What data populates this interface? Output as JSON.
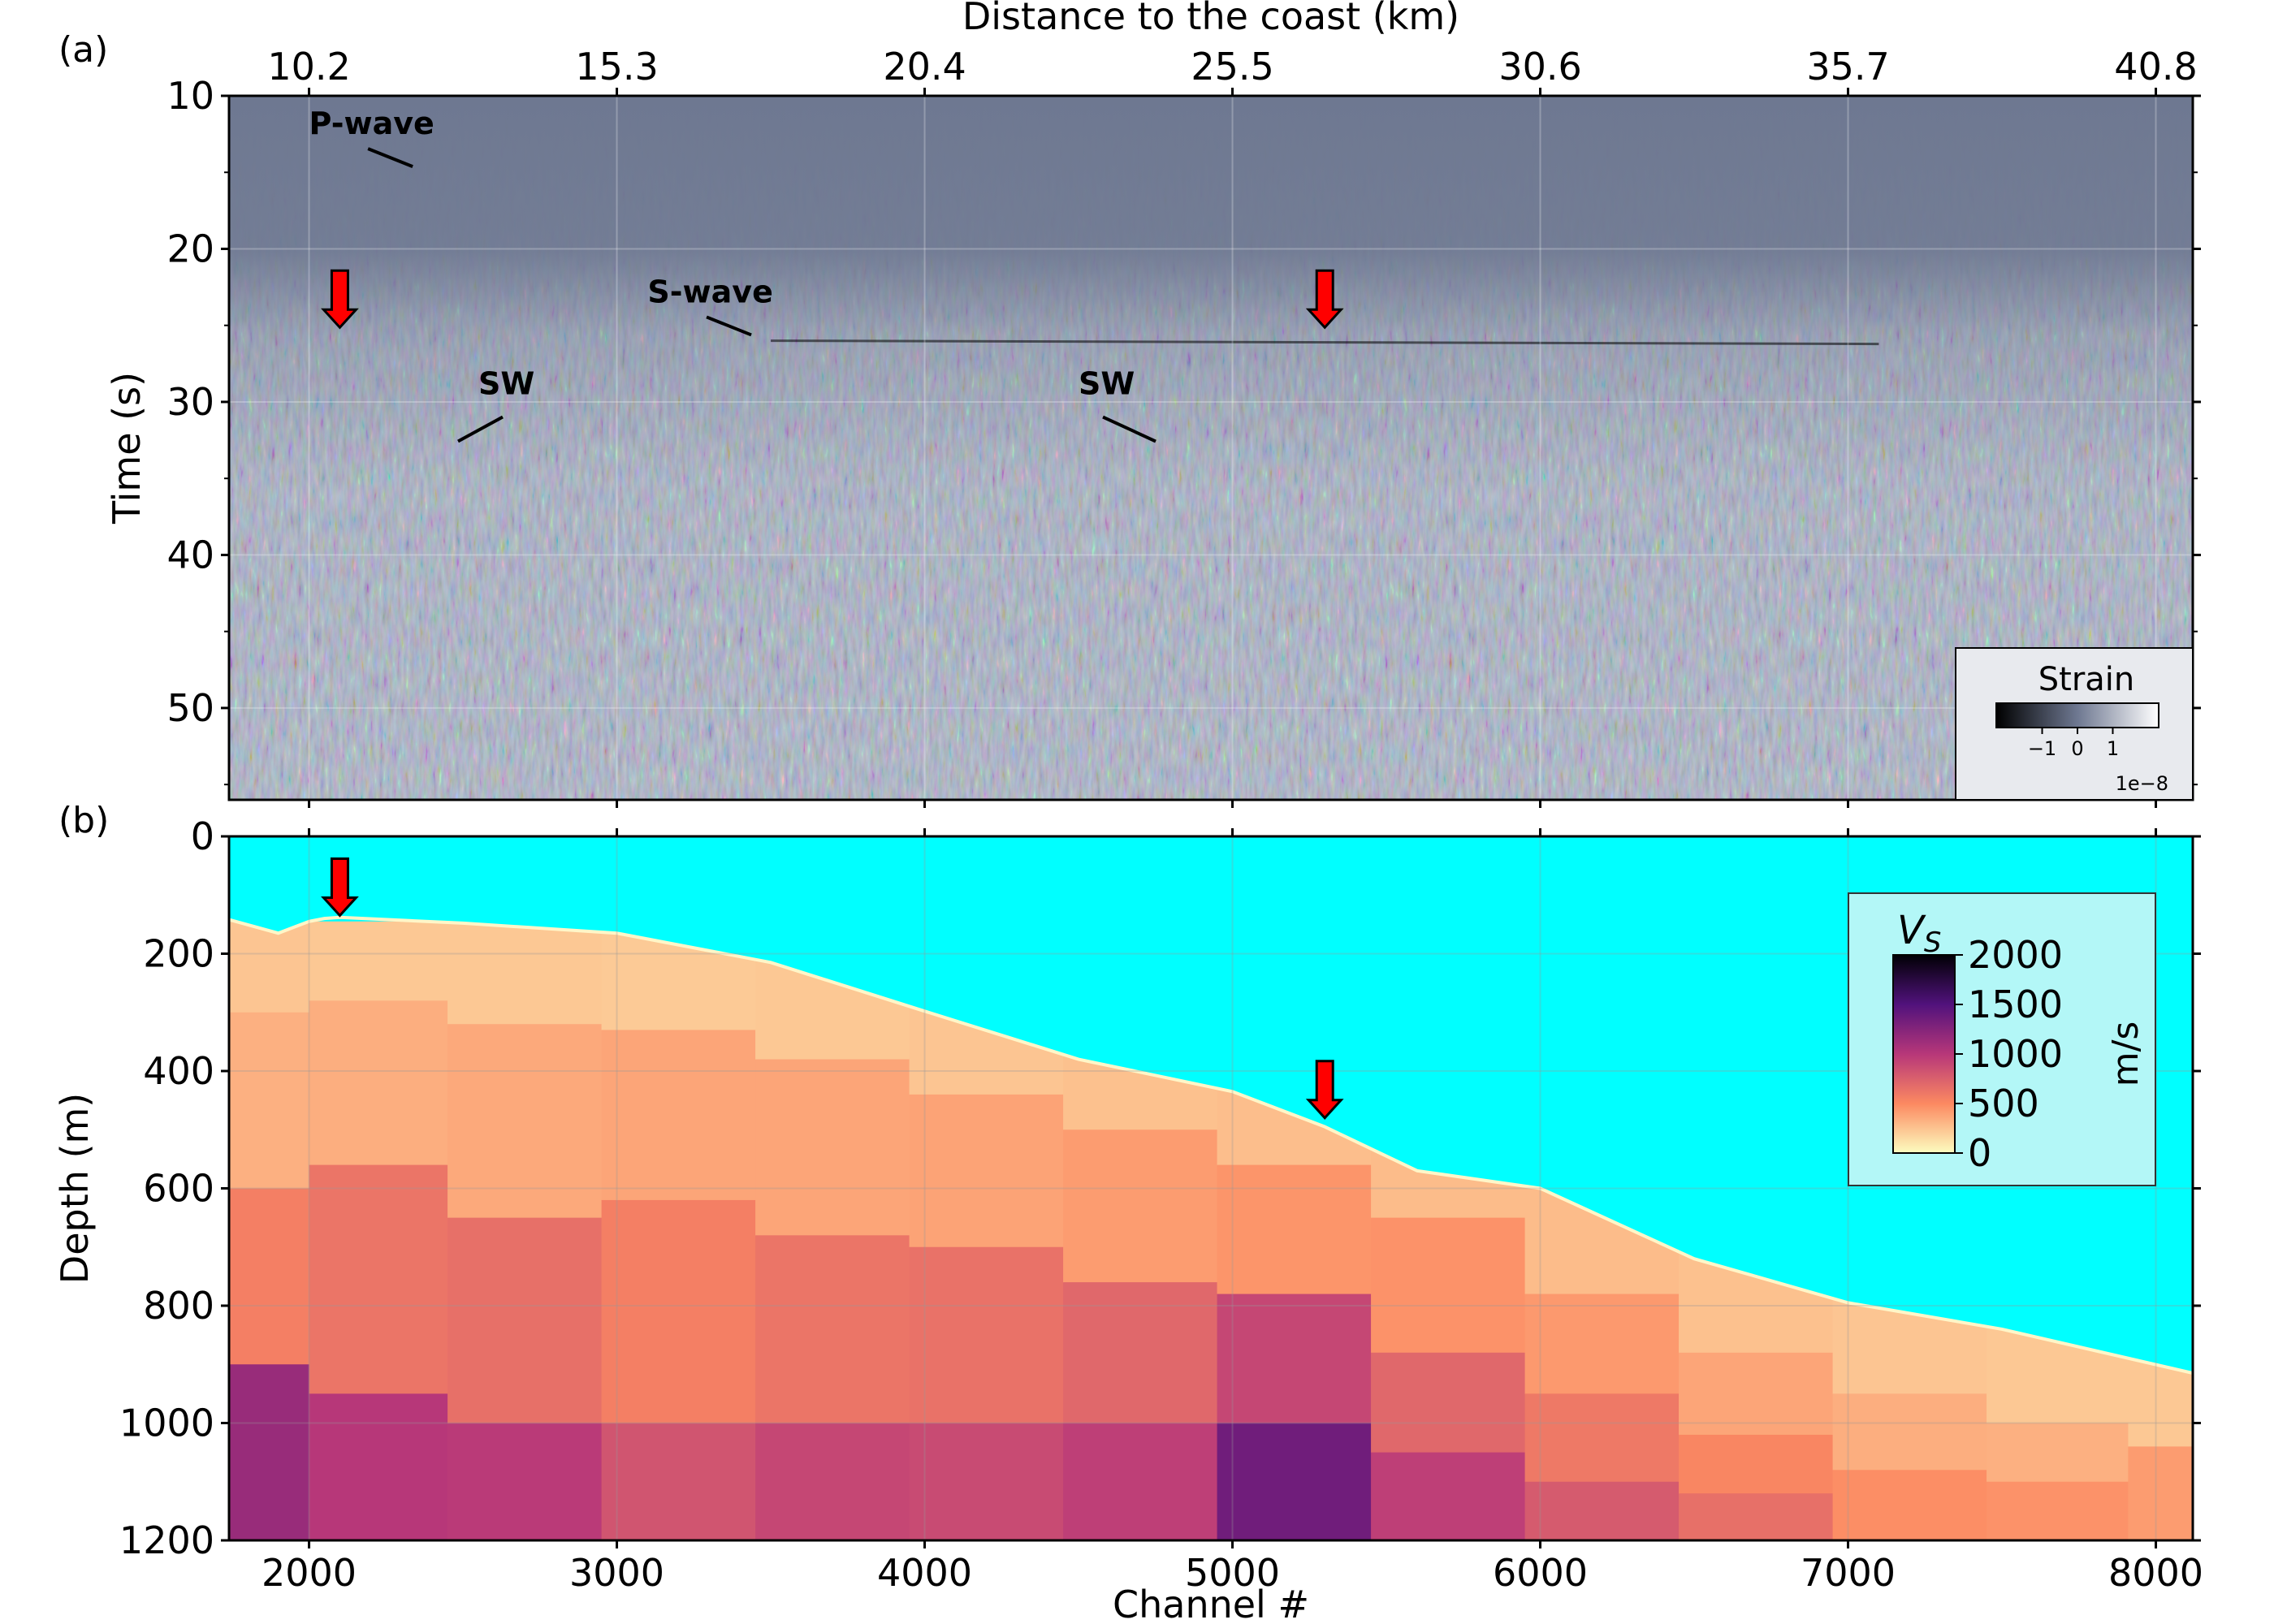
{
  "figure": {
    "panel_a_label": "(a)",
    "panel_b_label": "(b)"
  },
  "chart_data": [
    {
      "type": "heatmap",
      "panel": "(a)",
      "xlabel_top": "Distance to the coast (km)",
      "x_ticks_top": [
        "10.2",
        "15.3",
        "20.4",
        "25.5",
        "30.6",
        "35.7",
        "40.8"
      ],
      "x_ticks_channel": [
        2000,
        3000,
        4000,
        5000,
        6000,
        7000,
        8000
      ],
      "xlim_channel": [
        1740,
        8120
      ],
      "ylabel": "Time (s)",
      "ylim": [
        10,
        56
      ],
      "y_ticks": [
        10,
        20,
        30,
        40,
        50
      ],
      "colorbar": {
        "label": "Strain",
        "ticks": [
          "−1",
          "0",
          "1"
        ],
        "multiplier": "1e−8",
        "colors": [
          "#000000",
          "#6e7891",
          "#ffffff"
        ],
        "placement": "lower-right"
      },
      "annotations": [
        {
          "text": "P-wave",
          "channel": 2000,
          "time": 12.5
        },
        {
          "text": "S-wave",
          "channel": 3100,
          "time": 23.5
        },
        {
          "text": "SW",
          "channel": 2550,
          "time": 29.5
        },
        {
          "text": "SW",
          "channel": 4500,
          "time": 29.5
        }
      ],
      "arrows": [
        {
          "channel": 2100,
          "time": 24.5,
          "color": "#ff0000"
        },
        {
          "channel": 5300,
          "time": 24.5,
          "color": "#ff0000"
        }
      ],
      "features": {
        "direct_arrival_time_s": 26,
        "background_color": "#6e7891"
      }
    },
    {
      "type": "heatmap",
      "panel": "(b)",
      "xlabel": "Channel #",
      "x_ticks": [
        2000,
        3000,
        4000,
        5000,
        6000,
        7000,
        8000
      ],
      "xlim": [
        1740,
        8120
      ],
      "ylabel": "Depth (m)",
      "ylim": [
        0,
        1200
      ],
      "y_ticks": [
        0,
        200,
        400,
        600,
        800,
        1000,
        1200
      ],
      "colorbar": {
        "title": "V",
        "title_sub": "S",
        "unit": "m/s",
        "ticks": [
          0,
          500,
          1000,
          1500,
          2000
        ],
        "colors": [
          "#fcfdbf",
          "#fc8961",
          "#b73779",
          "#51127c",
          "#000004"
        ],
        "placement": "upper-right"
      },
      "water_color": "#00ffff",
      "seafloor": [
        {
          "channel": 1740,
          "depth": 142
        },
        {
          "channel": 1900,
          "depth": 165
        },
        {
          "channel": 2000,
          "depth": 145
        },
        {
          "channel": 2050,
          "depth": 140
        },
        {
          "channel": 2100,
          "depth": 138
        },
        {
          "channel": 2500,
          "depth": 148
        },
        {
          "channel": 3000,
          "depth": 165
        },
        {
          "channel": 3500,
          "depth": 215
        },
        {
          "channel": 4000,
          "depth": 298
        },
        {
          "channel": 4500,
          "depth": 380
        },
        {
          "channel": 5000,
          "depth": 435
        },
        {
          "channel": 5300,
          "depth": 495
        },
        {
          "channel": 5600,
          "depth": 570
        },
        {
          "channel": 6000,
          "depth": 600
        },
        {
          "channel": 6500,
          "depth": 720
        },
        {
          "channel": 7000,
          "depth": 795
        },
        {
          "channel": 7500,
          "depth": 840
        },
        {
          "channel": 8120,
          "depth": 915
        }
      ],
      "velocity_columns": [
        {
          "channel": 1800,
          "layers": [
            {
              "depth": 300,
              "vs": 240
            },
            {
              "depth": 600,
              "vs": 330
            },
            {
              "depth": 900,
              "vs": 560
            },
            {
              "depth": 1200,
              "vs": 1150
            }
          ]
        },
        {
          "channel": 2200,
          "layers": [
            {
              "depth": 280,
              "vs": 230
            },
            {
              "depth": 560,
              "vs": 340
            },
            {
              "depth": 950,
              "vs": 620
            },
            {
              "depth": 1200,
              "vs": 1000
            }
          ]
        },
        {
          "channel": 2700,
          "layers": [
            {
              "depth": 320,
              "vs": 230
            },
            {
              "depth": 650,
              "vs": 360
            },
            {
              "depth": 1000,
              "vs": 650
            },
            {
              "depth": 1200,
              "vs": 980
            }
          ]
        },
        {
          "channel": 3200,
          "layers": [
            {
              "depth": 330,
              "vs": 220
            },
            {
              "depth": 620,
              "vs": 380
            },
            {
              "depth": 1000,
              "vs": 560
            },
            {
              "depth": 1200,
              "vs": 820
            }
          ]
        },
        {
          "channel": 3700,
          "layers": [
            {
              "depth": 380,
              "vs": 230
            },
            {
              "depth": 680,
              "vs": 380
            },
            {
              "depth": 1000,
              "vs": 620
            },
            {
              "depth": 1200,
              "vs": 900
            }
          ]
        },
        {
          "channel": 4200,
          "layers": [
            {
              "depth": 440,
              "vs": 240
            },
            {
              "depth": 700,
              "vs": 390
            },
            {
              "depth": 1000,
              "vs": 640
            },
            {
              "depth": 1200,
              "vs": 880
            }
          ]
        },
        {
          "channel": 4700,
          "layers": [
            {
              "depth": 500,
              "vs": 260
            },
            {
              "depth": 760,
              "vs": 420
            },
            {
              "depth": 1000,
              "vs": 700
            },
            {
              "depth": 1200,
              "vs": 950
            }
          ]
        },
        {
          "channel": 5200,
          "layers": [
            {
              "depth": 560,
              "vs": 270
            },
            {
              "depth": 780,
              "vs": 450
            },
            {
              "depth": 1000,
              "vs": 900
            },
            {
              "depth": 1200,
              "vs": 1350
            }
          ]
        },
        {
          "channel": 5700,
          "layers": [
            {
              "depth": 650,
              "vs": 280
            },
            {
              "depth": 880,
              "vs": 460
            },
            {
              "depth": 1050,
              "vs": 700
            },
            {
              "depth": 1200,
              "vs": 950
            }
          ]
        },
        {
          "channel": 6200,
          "layers": [
            {
              "depth": 780,
              "vs": 280
            },
            {
              "depth": 950,
              "vs": 430
            },
            {
              "depth": 1100,
              "vs": 600
            },
            {
              "depth": 1200,
              "vs": 780
            }
          ]
        },
        {
          "channel": 6700,
          "layers": [
            {
              "depth": 880,
              "vs": 260
            },
            {
              "depth": 1020,
              "vs": 380
            },
            {
              "depth": 1120,
              "vs": 520
            },
            {
              "depth": 1200,
              "vs": 650
            }
          ]
        },
        {
          "channel": 7200,
          "layers": [
            {
              "depth": 950,
              "vs": 240
            },
            {
              "depth": 1080,
              "vs": 340
            },
            {
              "depth": 1200,
              "vs": 480
            }
          ]
        },
        {
          "channel": 7700,
          "layers": [
            {
              "depth": 1000,
              "vs": 230
            },
            {
              "depth": 1100,
              "vs": 330
            },
            {
              "depth": 1200,
              "vs": 460
            }
          ]
        },
        {
          "channel": 8120,
          "layers": [
            {
              "depth": 1040,
              "vs": 230
            },
            {
              "depth": 1200,
              "vs": 420
            }
          ]
        }
      ],
      "arrows": [
        {
          "channel": 2100,
          "depth": 135,
          "color": "#ff0000"
        },
        {
          "channel": 5300,
          "depth": 480,
          "color": "#ff0000"
        }
      ]
    }
  ]
}
